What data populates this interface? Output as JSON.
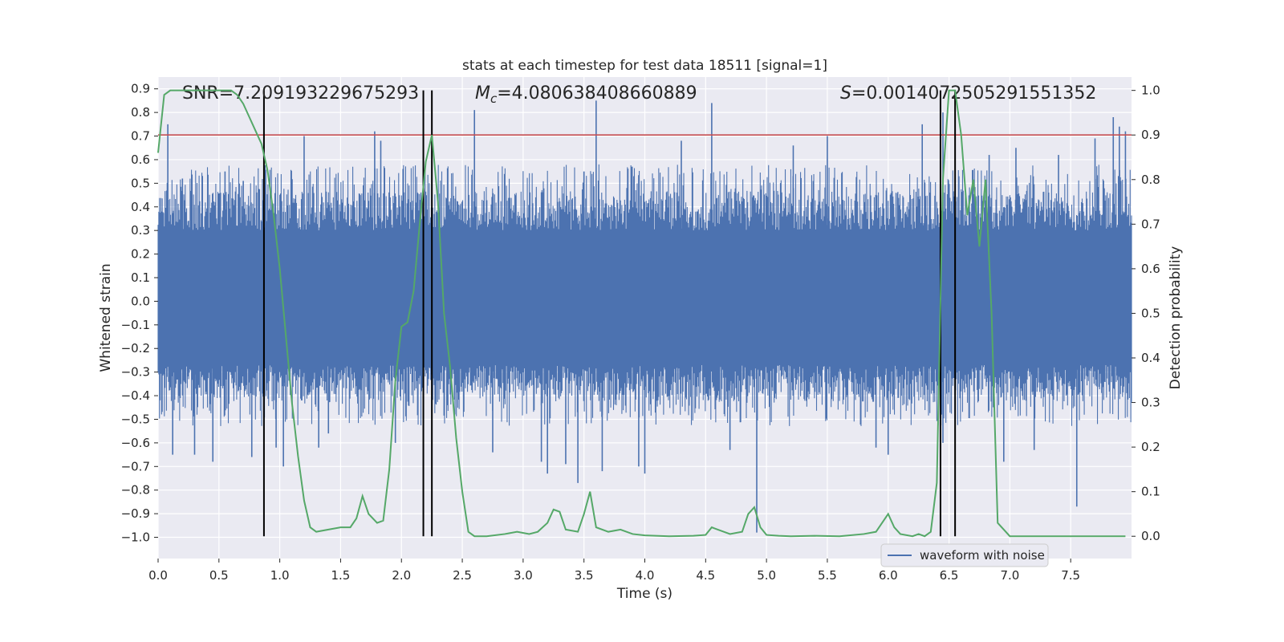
{
  "chart_data": {
    "type": "line",
    "title": "stats at each timestep for test data 18511 [signal=1]",
    "xlabel": "Time (s)",
    "ylabel_left": "Whitened strain",
    "ylabel_right": "Detection probability",
    "xlim": [
      0.0,
      8.0
    ],
    "ylim_left": [
      -1.09,
      0.95
    ],
    "ylim_right": [
      -0.05,
      1.03
    ],
    "xticks": [
      0.0,
      0.5,
      1.0,
      1.5,
      2.0,
      2.5,
      3.0,
      3.5,
      4.0,
      4.5,
      5.0,
      5.5,
      6.0,
      6.5,
      7.0,
      7.5
    ],
    "xtick_labels": [
      "0.0",
      "0.5",
      "1.0",
      "1.5",
      "2.0",
      "2.5",
      "3.0",
      "3.5",
      "4.0",
      "4.5",
      "5.0",
      "5.5",
      "6.0",
      "6.5",
      "7.0",
      "7.5"
    ],
    "yticks_left": [
      0.9,
      0.8,
      0.7,
      0.6,
      0.5,
      0.4,
      0.3,
      0.2,
      0.1,
      0.0,
      -0.1,
      -0.2,
      -0.3,
      -0.4,
      -0.5,
      -0.6,
      -0.7,
      -0.8,
      -0.9,
      -1.0
    ],
    "ytick_labels_left": [
      "0.9",
      "0.8",
      "0.7",
      "0.6",
      "0.5",
      "0.4",
      "0.3",
      "0.2",
      "0.1",
      "0.0",
      "−0.1",
      "−0.2",
      "−0.3",
      "−0.4",
      "−0.5",
      "−0.6",
      "−0.7",
      "−0.8",
      "−0.9",
      "−1.0"
    ],
    "yticks_right": [
      1.0,
      0.9,
      0.8,
      0.7,
      0.6,
      0.5,
      0.4,
      0.3,
      0.2,
      0.1,
      0.0
    ],
    "ytick_labels_right": [
      "1.0",
      "0.9",
      "0.8",
      "0.7",
      "0.6",
      "0.5",
      "0.4",
      "0.3",
      "0.2",
      "0.1",
      "0.0"
    ],
    "annotations": {
      "snr": "SNR=7.209193229675293",
      "mc_symbol": "M",
      "mc_sub": "c",
      "mc_value": "=4.080638408660889",
      "s_symbol": "S",
      "s_value": "=0.0014072505291551352"
    },
    "legend": {
      "label": "waveform with noise",
      "placement": "lower-right"
    },
    "colors": {
      "background": "#eaeaf2",
      "grid": "#ffffff",
      "waveform": "#4c72b0",
      "probability": "#55a868",
      "threshold": "#c44e52",
      "markers": "#000000"
    },
    "threshold_level": 0.9,
    "vertical_markers_s": [
      0.87,
      2.18,
      2.25,
      6.43,
      6.55
    ],
    "waveform": {
      "name": "waveform with noise",
      "description_band": [
        -0.27,
        0.3
      ],
      "spike_peaks": [
        {
          "t": 0.08,
          "y": 0.75
        },
        {
          "t": 0.12,
          "y": -0.65
        },
        {
          "t": 0.2,
          "y": 0.52
        },
        {
          "t": 0.3,
          "y": -0.65
        },
        {
          "t": 0.45,
          "y": -0.68
        },
        {
          "t": 0.55,
          "y": 0.55
        },
        {
          "t": 0.7,
          "y": 0.51
        },
        {
          "t": 0.77,
          "y": -0.66
        },
        {
          "t": 0.97,
          "y": -0.62
        },
        {
          "t": 1.03,
          "y": -0.7
        },
        {
          "t": 1.2,
          "y": 0.7
        },
        {
          "t": 1.32,
          "y": -0.62
        },
        {
          "t": 1.4,
          "y": -0.56
        },
        {
          "t": 1.78,
          "y": 0.72
        },
        {
          "t": 1.83,
          "y": 0.68
        },
        {
          "t": 1.95,
          "y": -0.6
        },
        {
          "t": 2.6,
          "y": 0.81
        },
        {
          "t": 2.75,
          "y": -0.64
        },
        {
          "t": 3.15,
          "y": -0.68
        },
        {
          "t": 3.2,
          "y": -0.73
        },
        {
          "t": 3.35,
          "y": -0.69
        },
        {
          "t": 3.45,
          "y": -0.77
        },
        {
          "t": 3.5,
          "y": 0.55
        },
        {
          "t": 3.6,
          "y": 0.85
        },
        {
          "t": 3.65,
          "y": -0.72
        },
        {
          "t": 3.95,
          "y": -0.7
        },
        {
          "t": 4.0,
          "y": -0.73
        },
        {
          "t": 4.3,
          "y": 0.68
        },
        {
          "t": 4.55,
          "y": 0.84
        },
        {
          "t": 4.7,
          "y": -0.63
        },
        {
          "t": 4.92,
          "y": -0.98
        },
        {
          "t": 5.22,
          "y": 0.66
        },
        {
          "t": 5.5,
          "y": 0.7
        },
        {
          "t": 5.9,
          "y": -0.62
        },
        {
          "t": 6.0,
          "y": -0.65
        },
        {
          "t": 6.28,
          "y": 0.75
        },
        {
          "t": 6.45,
          "y": 0.8
        },
        {
          "t": 6.45,
          "y": -0.6
        },
        {
          "t": 6.83,
          "y": 0.62
        },
        {
          "t": 6.95,
          "y": -0.68
        },
        {
          "t": 7.05,
          "y": 0.65
        },
        {
          "t": 7.2,
          "y": -0.63
        },
        {
          "t": 7.4,
          "y": 0.62
        },
        {
          "t": 7.55,
          "y": -0.87
        },
        {
          "t": 7.7,
          "y": 0.69
        },
        {
          "t": 7.85,
          "y": 0.78
        },
        {
          "t": 7.9,
          "y": 0.74
        },
        {
          "t": 7.95,
          "y": 0.72
        }
      ]
    },
    "probability": {
      "name": "detection probability",
      "x": [
        0.0,
        0.05,
        0.1,
        0.2,
        0.3,
        0.4,
        0.5,
        0.6,
        0.65,
        0.7,
        0.75,
        0.8,
        0.85,
        0.9,
        0.95,
        1.0,
        1.05,
        1.1,
        1.15,
        1.2,
        1.25,
        1.3,
        1.4,
        1.5,
        1.58,
        1.63,
        1.68,
        1.73,
        1.8,
        1.85,
        1.9,
        1.95,
        2.0,
        2.05,
        2.1,
        2.15,
        2.2,
        2.25,
        2.3,
        2.35,
        2.4,
        2.45,
        2.5,
        2.55,
        2.6,
        2.7,
        2.85,
        2.95,
        3.05,
        3.12,
        3.2,
        3.25,
        3.3,
        3.35,
        3.45,
        3.5,
        3.55,
        3.6,
        3.7,
        3.8,
        3.9,
        4.0,
        4.2,
        4.4,
        4.5,
        4.55,
        4.6,
        4.7,
        4.8,
        4.85,
        4.9,
        4.95,
        5.0,
        5.1,
        5.2,
        5.4,
        5.6,
        5.8,
        5.9,
        6.0,
        6.05,
        6.1,
        6.2,
        6.25,
        6.3,
        6.35,
        6.4,
        6.45,
        6.5,
        6.55,
        6.6,
        6.65,
        6.7,
        6.75,
        6.8,
        6.85,
        6.9,
        7.0,
        7.2,
        7.5,
        7.95
      ],
      "y": [
        0.86,
        0.99,
        1.0,
        1.0,
        1.0,
        1.0,
        1.0,
        1.0,
        0.99,
        0.97,
        0.94,
        0.91,
        0.88,
        0.82,
        0.72,
        0.6,
        0.45,
        0.3,
        0.18,
        0.08,
        0.02,
        0.01,
        0.015,
        0.02,
        0.02,
        0.04,
        0.09,
        0.05,
        0.03,
        0.035,
        0.15,
        0.35,
        0.47,
        0.48,
        0.55,
        0.7,
        0.84,
        0.9,
        0.75,
        0.5,
        0.38,
        0.22,
        0.1,
        0.01,
        0.0,
        0.0,
        0.005,
        0.01,
        0.005,
        0.01,
        0.03,
        0.06,
        0.055,
        0.015,
        0.01,
        0.05,
        0.1,
        0.02,
        0.01,
        0.015,
        0.005,
        0.002,
        0.0,
        0.001,
        0.003,
        0.02,
        0.015,
        0.005,
        0.01,
        0.05,
        0.065,
        0.02,
        0.003,
        0.001,
        0.0,
        0.001,
        0.0,
        0.005,
        0.01,
        0.05,
        0.02,
        0.005,
        0.0,
        0.005,
        0.0,
        0.01,
        0.12,
        0.8,
        1.0,
        1.0,
        0.9,
        0.72,
        0.8,
        0.65,
        0.8,
        0.5,
        0.03,
        0.0,
        0.0,
        0.0,
        0.0
      ]
    }
  }
}
